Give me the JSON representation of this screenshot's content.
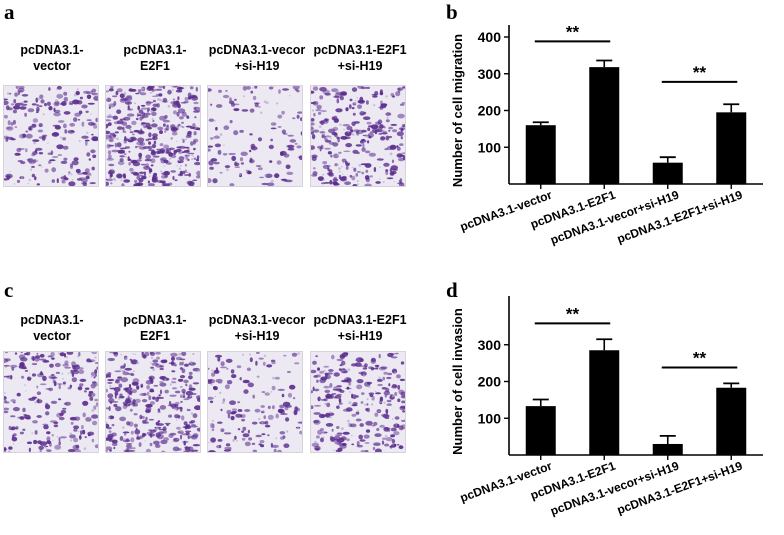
{
  "panels": [
    {
      "letter": "a"
    },
    {
      "letter": "b"
    },
    {
      "letter": "c"
    },
    {
      "letter": "d"
    }
  ],
  "image_rows": [
    {
      "letter": "a",
      "labels": [
        [
          "pcDNA3.1-",
          "vector"
        ],
        [
          "pcDNA3.1-",
          "E2F1"
        ],
        [
          "pcDNA3.1-vecor",
          "+si-H19"
        ],
        [
          "pcDNA3.1-E2F1",
          "+si-H19"
        ]
      ],
      "densities": [
        0.45,
        0.95,
        0.22,
        0.62
      ],
      "colors": {
        "cell": "#5b2d8e",
        "background": "#ece9f2"
      }
    },
    {
      "letter": "c",
      "labels": [
        [
          "pcDNA3.1-",
          "vector"
        ],
        [
          "pcDNA3.1-",
          "E2F1"
        ],
        [
          "pcDNA3.1-vecor",
          "+si-H19"
        ],
        [
          "pcDNA3.1-E2F1",
          "+si-H19"
        ]
      ],
      "densities": [
        0.5,
        0.8,
        0.3,
        0.6
      ],
      "colors": {
        "cell": "#5b2d8e",
        "background": "#ece9f2"
      }
    }
  ],
  "chart_data": [
    {
      "type": "bar",
      "panel": "b",
      "ylabel": "Number of cell migration",
      "categories": [
        "pcDNA3.1-vector",
        "pcDNA3.1-E2F1",
        "pcDNA3.1-vecor+si-H19",
        "pcDNA3.1-E2F1+si-H19"
      ],
      "values": [
        160,
        318,
        58,
        195
      ],
      "errors": [
        8,
        18,
        15,
        22
      ],
      "ylim": [
        0,
        400
      ],
      "yticks": [
        100,
        200,
        300,
        400
      ],
      "significance": [
        {
          "between": [
            0,
            1
          ],
          "label": "**",
          "y": 388
        },
        {
          "between": [
            2,
            3
          ],
          "label": "**",
          "y": 278
        }
      ],
      "bar_color": "#000000",
      "grid": false
    },
    {
      "type": "bar",
      "panel": "d",
      "ylabel": "Number of cell invasion",
      "categories": [
        "pcDNA3.1-vector",
        "pcDNA3.1-E2F1",
        "pcDNA3.1-vecor+si-H19",
        "pcDNA3.1-E2F1+si-H19"
      ],
      "values": [
        133,
        285,
        30,
        183
      ],
      "errors": [
        18,
        30,
        22,
        12
      ],
      "ylim": [
        0,
        400
      ],
      "yticks": [
        100,
        200,
        300
      ],
      "significance": [
        {
          "between": [
            0,
            1
          ],
          "label": "**",
          "y": 358
        },
        {
          "between": [
            2,
            3
          ],
          "label": "**",
          "y": 238
        }
      ],
      "bar_color": "#000000",
      "grid": false
    }
  ]
}
